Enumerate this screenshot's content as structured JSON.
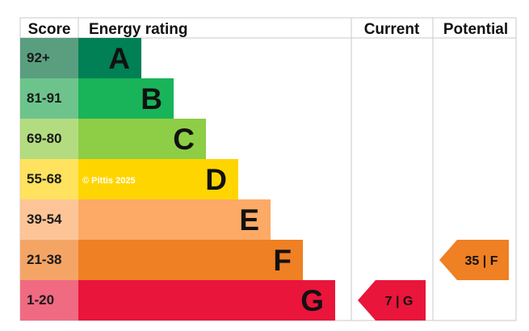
{
  "headers": {
    "score": "Score",
    "rating": "Energy rating",
    "current": "Current",
    "potential": "Potential"
  },
  "watermark": "© Pittis 2025",
  "chart_data": {
    "type": "bar",
    "bands": [
      {
        "score": "92+",
        "letter": "A",
        "bar_color": "#008054",
        "score_color": "#5a9e80"
      },
      {
        "score": "81-91",
        "letter": "B",
        "bar_color": "#19b459",
        "score_color": "#6cc48c"
      },
      {
        "score": "69-80",
        "letter": "C",
        "bar_color": "#8dce46",
        "score_color": "#b3dc80"
      },
      {
        "score": "55-68",
        "letter": "D",
        "bar_color": "#ffd500",
        "score_color": "#ffe25e"
      },
      {
        "score": "39-54",
        "letter": "E",
        "bar_color": "#fcaa65",
        "score_color": "#fdc597"
      },
      {
        "score": "21-38",
        "letter": "F",
        "bar_color": "#ef8023",
        "score_color": "#f4a565"
      },
      {
        "score": "1-20",
        "letter": "G",
        "bar_color": "#e9153b",
        "score_color": "#f06a82"
      }
    ],
    "current": {
      "value": 7,
      "letter": "G",
      "label": "7 | G",
      "color": "#e9153b",
      "text_color": "#111111"
    },
    "potential": {
      "value": 35,
      "letter": "F",
      "label": "35 | F",
      "color": "#ef8023",
      "text_color": "#111111"
    }
  }
}
